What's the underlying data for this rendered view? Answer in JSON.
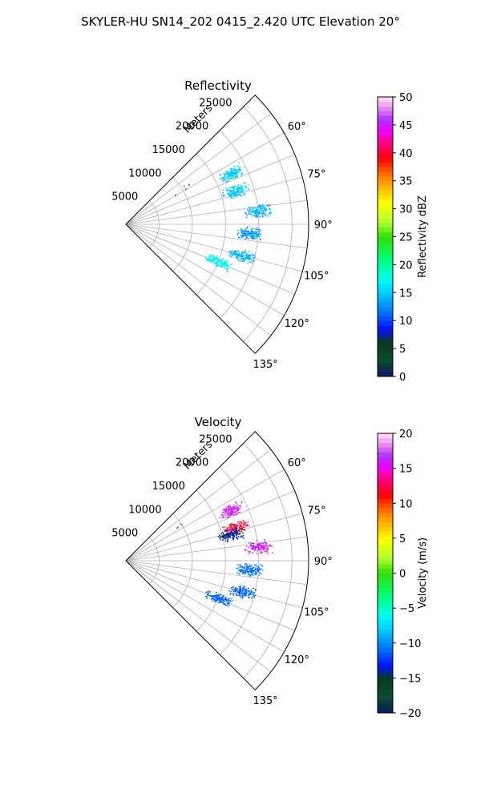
{
  "suptitle": "SKYLER-HU  SN14_202  0415_2.420 UTC Elevation 20°",
  "chart_data": [
    {
      "type": "polar-sector-scatter",
      "title": "Reflectivity",
      "radial_label": "Meters",
      "theta_range_deg": [
        45,
        135
      ],
      "r_max_m": 27500,
      "r_ticks": [
        5000,
        10000,
        15000,
        20000,
        25000
      ],
      "r_tick_labels": [
        "5000",
        "10000",
        "15000",
        "20000",
        "25000"
      ],
      "theta_ticks_deg": [
        60,
        75,
        90,
        105,
        120,
        135
      ],
      "theta_tick_labels": [
        "60°",
        "75°",
        "90°",
        "105°",
        "120°",
        "135°"
      ],
      "grid": true,
      "colorbar": {
        "label": "Reflectivity dBZ",
        "vmin": 0,
        "vmax": 50,
        "ticks": [
          0,
          5,
          10,
          15,
          20,
          25,
          30,
          35,
          40,
          45,
          50
        ],
        "tick_labels": [
          "0",
          "5",
          "10",
          "15",
          "20",
          "25",
          "30",
          "35",
          "40",
          "45",
          "50"
        ]
      },
      "clusters": [
        {
          "theta_deg": 64,
          "r_m": 17600,
          "value": 15
        },
        {
          "theta_deg": 73,
          "r_m": 17200,
          "value": 15
        },
        {
          "theta_deg": 84,
          "r_m": 20000,
          "value": 14
        },
        {
          "theta_deg": 94,
          "r_m": 18500,
          "value": 13
        },
        {
          "theta_deg": 105,
          "r_m": 18000,
          "value": 14
        },
        {
          "theta_deg": 112,
          "r_m": 15000,
          "value": 17
        },
        {
          "theta_deg": 57,
          "r_m": 10000,
          "value": 2
        }
      ]
    },
    {
      "type": "polar-sector-scatter",
      "title": "Velocity",
      "radial_label": "Meters",
      "theta_range_deg": [
        45,
        135
      ],
      "r_max_m": 27500,
      "r_ticks": [
        5000,
        10000,
        15000,
        20000,
        25000
      ],
      "r_tick_labels": [
        "5000",
        "10000",
        "15000",
        "20000",
        "25000"
      ],
      "theta_ticks_deg": [
        60,
        75,
        90,
        105,
        120,
        135
      ],
      "theta_tick_labels": [
        "60°",
        "75°",
        "90°",
        "105°",
        "120°",
        "135°"
      ],
      "grid": true,
      "colorbar": {
        "label": "Velocity (m/s)",
        "vmin": -20,
        "vmax": 20,
        "ticks": [
          -20,
          -15,
          -10,
          -5,
          0,
          5,
          10,
          15,
          20
        ],
        "tick_labels": [
          "−20",
          "−15",
          "−10",
          "−5",
          "0",
          "5",
          "10",
          "15",
          "20"
        ]
      },
      "clusters": [
        {
          "theta_deg": 64,
          "r_m": 17600,
          "value": 16
        },
        {
          "theta_deg": 73,
          "r_m": 17200,
          "value": 12
        },
        {
          "theta_deg": 76,
          "r_m": 16200,
          "value": -14
        },
        {
          "theta_deg": 84,
          "r_m": 20000,
          "value": 16
        },
        {
          "theta_deg": 94,
          "r_m": 18500,
          "value": -11
        },
        {
          "theta_deg": 105,
          "r_m": 18000,
          "value": -11
        },
        {
          "theta_deg": 112,
          "r_m": 15000,
          "value": -11
        },
        {
          "theta_deg": 57,
          "r_m": 10000,
          "value": -11
        }
      ]
    }
  ]
}
